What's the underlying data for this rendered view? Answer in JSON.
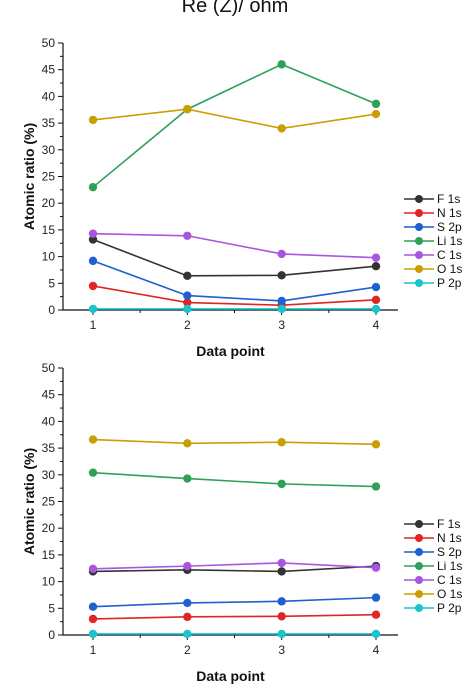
{
  "header_text": "Re (Z)/ ohm",
  "chart_data": [
    {
      "type": "line",
      "xlabel": "Data point",
      "ylabel": "Atomic ratio (%)",
      "x": [
        1,
        2,
        3,
        4
      ],
      "x_ticks": [
        "1",
        "2",
        "3",
        "4"
      ],
      "ylim": [
        0,
        50
      ],
      "y_ticks": [
        "0",
        "5",
        "10",
        "15",
        "20",
        "25",
        "30",
        "35",
        "40",
        "45",
        "50"
      ],
      "legend_position": "right",
      "series": [
        {
          "name": "F 1s",
          "color": "#333333",
          "values": [
            13.2,
            6.4,
            6.5,
            8.2
          ]
        },
        {
          "name": "N 1s",
          "color": "#e02525",
          "values": [
            4.5,
            1.4,
            0.9,
            1.9
          ]
        },
        {
          "name": "S 2p",
          "color": "#1f5fd0",
          "values": [
            9.2,
            2.7,
            1.7,
            4.3
          ]
        },
        {
          "name": "Li 1s",
          "color": "#2ea05a",
          "values": [
            23.0,
            37.6,
            46.0,
            38.6
          ]
        },
        {
          "name": "C 1s",
          "color": "#a855e0",
          "values": [
            14.3,
            13.9,
            10.5,
            9.8
          ]
        },
        {
          "name": "O 1s",
          "color": "#c9a000",
          "values": [
            35.6,
            37.6,
            34.0,
            36.7
          ]
        },
        {
          "name": "P 2p",
          "color": "#19c4cc",
          "values": [
            0.2,
            0.2,
            0.2,
            0.2
          ]
        }
      ]
    },
    {
      "type": "line",
      "xlabel": "Data point",
      "ylabel": "Atomic ratio (%)",
      "x": [
        1,
        2,
        3,
        4
      ],
      "x_ticks": [
        "1",
        "2",
        "3",
        "4"
      ],
      "ylim": [
        0,
        50
      ],
      "y_ticks": [
        "0",
        "5",
        "10",
        "15",
        "20",
        "25",
        "30",
        "35",
        "40",
        "45",
        "50"
      ],
      "legend_position": "right",
      "series": [
        {
          "name": "F 1s",
          "color": "#333333",
          "values": [
            11.9,
            12.2,
            11.9,
            12.9
          ]
        },
        {
          "name": "N 1s",
          "color": "#e02525",
          "values": [
            3.0,
            3.4,
            3.5,
            3.8
          ]
        },
        {
          "name": "S 2p",
          "color": "#1f5fd0",
          "values": [
            5.3,
            6.0,
            6.3,
            7.0
          ]
        },
        {
          "name": "Li 1s",
          "color": "#2ea05a",
          "values": [
            30.4,
            29.3,
            28.3,
            27.8
          ]
        },
        {
          "name": "C 1s",
          "color": "#a855e0",
          "values": [
            12.4,
            12.9,
            13.5,
            12.6
          ]
        },
        {
          "name": "O 1s",
          "color": "#c9a000",
          "values": [
            36.6,
            35.9,
            36.1,
            35.7
          ]
        },
        {
          "name": "P 2p",
          "color": "#19c4cc",
          "values": [
            0.2,
            0.2,
            0.2,
            0.2
          ]
        }
      ]
    }
  ]
}
